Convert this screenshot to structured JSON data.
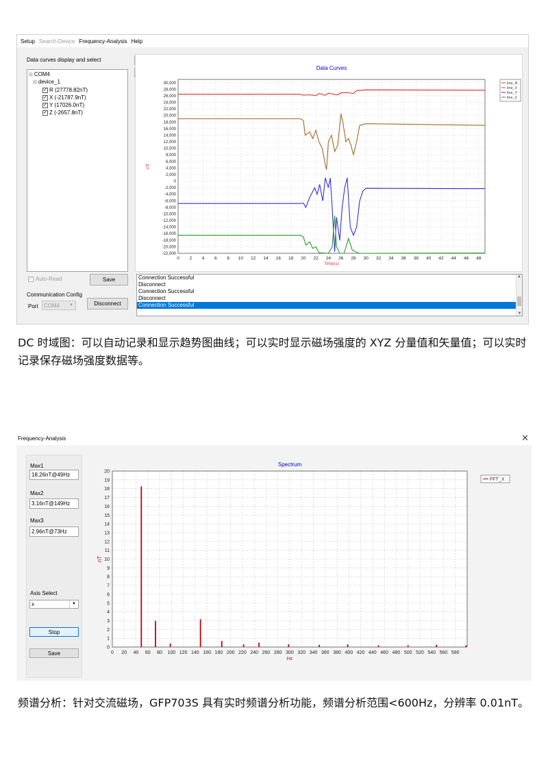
{
  "dc_window": {
    "menu": [
      {
        "label": "Setup",
        "enabled": true
      },
      {
        "label": "Search-Device",
        "enabled": false
      },
      {
        "label": "Frequency-Analysis",
        "enabled": true
      },
      {
        "label": "Help",
        "enabled": true
      }
    ],
    "left_panel_title": "Data curves display and select",
    "tree": {
      "root": "COM4",
      "device": "device_1",
      "channels": [
        "R (27778.82nT)",
        "X (-21787.9nT)",
        "Y (17026.0nT)",
        "Z (-2657.8nT)"
      ]
    },
    "plus_label": "+",
    "minus_label": "-",
    "auto_read_label": "Auto-Read",
    "save_label": "Save",
    "comm_title": "Communication Config",
    "port_label": "Port",
    "port_value": "COM4",
    "disconnect_label": "Disconnect",
    "log_lines": [
      "Connection Successful",
      "Disconnect",
      "Connection Successful",
      "Disconnect",
      "Connection Successful"
    ],
    "colors": {
      "R": "#e03030",
      "X": "#a0692a",
      "Y": "#3030d8",
      "Z": "#2a9a2a",
      "title": "#0000cc"
    }
  },
  "dc_caption": "DC 时域图：可以自动记录和显示趋势图曲线；可以实时显示磁场强度的 XYZ 分量值和矢量值；可以实时记录保存磁场强度数据等。",
  "fa_window": {
    "title": "Frequency-Analysis",
    "close_icon": "close-icon",
    "max1_label": "Max1",
    "max1_value": "18.26nT@49Hz",
    "max2_label": "Max2",
    "max2_value": "3.16nT@149Hz",
    "max3_label": "Max3",
    "max3_value": "2.96nT@73Hz",
    "axis_select_label": "Axis Select",
    "axis_value": "x",
    "stop_label": "Stop",
    "save_label": "Save"
  },
  "fa_caption": "频谱分析：针对交流磁场，GFP703S 具有实时频谱分析功能，频谱分析范围<600Hz，分辨率 0.01nT。",
  "chart_data": [
    {
      "type": "line",
      "title": "Data Curves",
      "xlabel": "Time(s)",
      "ylabel": "nT",
      "xlim": [
        0,
        49
      ],
      "ylim": [
        -22000,
        31000
      ],
      "xticks": [
        0,
        2,
        4,
        6,
        8,
        10,
        12,
        14,
        16,
        18,
        20,
        22,
        24,
        26,
        28,
        30,
        32,
        34,
        36,
        38,
        40,
        42,
        44,
        46,
        48
      ],
      "yticks": [
        -22000,
        -20000,
        -18000,
        -16000,
        -14000,
        -12000,
        -10000,
        -8000,
        -6000,
        -4000,
        -2000,
        0,
        2000,
        4000,
        6000,
        8000,
        10000,
        12000,
        14000,
        16000,
        18000,
        20000,
        22000,
        24000,
        26000,
        28000,
        30000
      ],
      "ytick_labels": [
        "-22,000",
        "-20,000",
        "-18,000",
        "-16,000",
        "-14,000",
        "-12,000",
        "-10,000",
        "-8,000",
        "-6,000",
        "-4,000",
        "-2,000",
        "0",
        "2,000",
        "4,000",
        "6,000",
        "8,000",
        "10,000",
        "12,000",
        "14,000",
        "16,000",
        "18,000",
        "20,000",
        "22,000",
        "24,000",
        "26,000",
        "28,000",
        "30,000"
      ],
      "grid": true,
      "legend": "top-right",
      "series": [
        {
          "name": "line_R",
          "color": "#e03030",
          "points": [
            [
              0,
              26500
            ],
            [
              19.5,
              26500
            ],
            [
              20,
              26200
            ],
            [
              21,
              26300
            ],
            [
              22,
              26100
            ],
            [
              22.5,
              26700
            ],
            [
              23.5,
              26200
            ],
            [
              24,
              26800
            ],
            [
              24.5,
              26600
            ],
            [
              25.5,
              26300
            ],
            [
              26,
              26900
            ],
            [
              27,
              27000
            ],
            [
              28,
              26700
            ],
            [
              28.5,
              27600
            ],
            [
              30,
              27800
            ],
            [
              49,
              27700
            ]
          ]
        },
        {
          "name": "line_X",
          "color": "#a0692a",
          "points": [
            [
              0,
              19000
            ],
            [
              19.5,
              19000
            ],
            [
              20,
              18500
            ],
            [
              20.3,
              14000
            ],
            [
              21,
              15000
            ],
            [
              21.5,
              13000
            ],
            [
              22,
              15500
            ],
            [
              22.5,
              12000
            ],
            [
              23,
              10000
            ],
            [
              23.5,
              5000
            ],
            [
              23.7,
              3500
            ],
            [
              24,
              12000
            ],
            [
              24.5,
              14000
            ],
            [
              25,
              9000
            ],
            [
              25.5,
              11000
            ],
            [
              26,
              20500
            ],
            [
              26.3,
              18000
            ],
            [
              26.8,
              12000
            ],
            [
              27.2,
              13000
            ],
            [
              27.6,
              11000
            ],
            [
              28,
              8000
            ],
            [
              28.5,
              12000
            ],
            [
              29,
              17000
            ],
            [
              30,
              17500
            ],
            [
              49,
              17000
            ]
          ]
        },
        {
          "name": "line_Y",
          "color": "#3030d8",
          "points": [
            [
              0,
              -6800
            ],
            [
              19.5,
              -6800
            ],
            [
              20,
              -6700
            ],
            [
              20.4,
              -8000
            ],
            [
              21,
              -5000
            ],
            [
              21.8,
              -2000
            ],
            [
              22.2,
              -4000
            ],
            [
              22.6,
              -1000
            ],
            [
              23.1,
              -6000
            ],
            [
              23.5,
              1000
            ],
            [
              24,
              -2000
            ],
            [
              24.3,
              1000
            ],
            [
              24.6,
              -8000
            ],
            [
              25,
              -21500
            ],
            [
              25.3,
              -11000
            ],
            [
              25.8,
              -18000
            ],
            [
              26.2,
              -8000
            ],
            [
              26.6,
              -2000
            ],
            [
              27,
              1000
            ],
            [
              27.5,
              -14000
            ],
            [
              28,
              -16500
            ],
            [
              28.5,
              -14000
            ],
            [
              29,
              -6000
            ],
            [
              29.5,
              -3000
            ],
            [
              30,
              -2200
            ],
            [
              49,
              -2300
            ]
          ]
        },
        {
          "name": "line_Z",
          "color": "#2a9a2a",
          "points": [
            [
              0,
              -16500
            ],
            [
              19.5,
              -16500
            ],
            [
              20,
              -17000
            ],
            [
              20.4,
              -19500
            ],
            [
              21,
              -18500
            ],
            [
              21.5,
              -20500
            ],
            [
              22,
              -20000
            ],
            [
              22.5,
              -21800
            ],
            [
              24,
              -22000
            ],
            [
              24.6,
              -20000
            ],
            [
              25,
              -10500
            ],
            [
              25.3,
              -20000
            ],
            [
              25.8,
              -22000
            ],
            [
              26.5,
              -22000
            ],
            [
              27.2,
              -17500
            ],
            [
              27.8,
              -21000
            ],
            [
              28.3,
              -21500
            ],
            [
              29,
              -22000
            ],
            [
              49,
              -21900
            ]
          ]
        }
      ]
    },
    {
      "type": "bar",
      "title": "Spectrum",
      "xlabel": "Hz",
      "ylabel": "nT",
      "xlim": [
        0,
        600
      ],
      "ylim": [
        0,
        20
      ],
      "xticks": [
        0,
        20,
        40,
        60,
        80,
        100,
        120,
        140,
        160,
        180,
        200,
        220,
        240,
        260,
        280,
        300,
        320,
        340,
        360,
        380,
        400,
        420,
        440,
        460,
        480,
        500,
        520,
        540,
        560,
        580
      ],
      "yticks": [
        0,
        1,
        2,
        3,
        4,
        5,
        6,
        7,
        8,
        9,
        10,
        11,
        12,
        13,
        14,
        15,
        16,
        17,
        18,
        19,
        20
      ],
      "grid": true,
      "legend": "top-right",
      "series": [
        {
          "name": "FFT_X",
          "color": "#c00000",
          "x": [
            49,
            73,
            98,
            149,
            185,
            222,
            248,
            298,
            350,
            398,
            450,
            500,
            548,
            598
          ],
          "values": [
            18.26,
            2.96,
            0.4,
            3.16,
            0.7,
            0.3,
            0.5,
            0.3,
            0.25,
            0.3,
            0.2,
            0.2,
            0.25,
            0.2
          ]
        }
      ]
    }
  ]
}
